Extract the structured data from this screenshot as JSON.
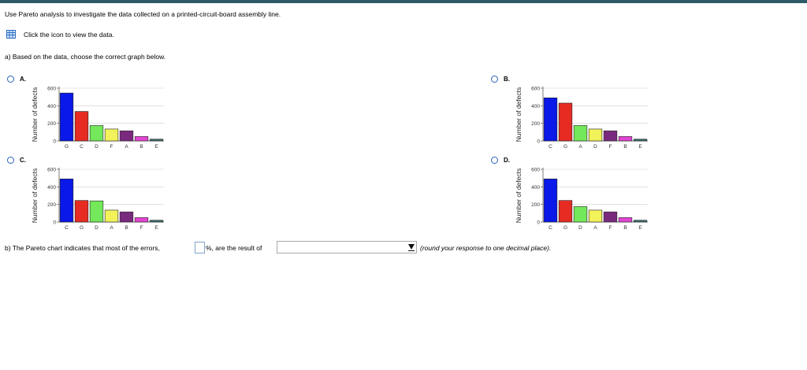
{
  "header_color": "#2e5a68",
  "intro": "Use Pareto analysis to investigate the data collected on a printed-circuit-board assembly line.",
  "data_link": {
    "icon": "table-grid-icon",
    "label": "Click the icon to view the data."
  },
  "question_a": "a) Based on the data, choose the correct graph below.",
  "options": [
    {
      "label": "A.",
      "ylabel": "Number of defects",
      "yticks": [
        "0",
        "200",
        "400",
        "600"
      ],
      "chart_data": {
        "type": "bar",
        "categories": [
          "G",
          "C",
          "D",
          "F",
          "A",
          "B",
          "E"
        ],
        "values": [
          545,
          335,
          175,
          135,
          115,
          50,
          20
        ],
        "colors": [
          "#0a18e8",
          "#e52b22",
          "#73e85a",
          "#f2f25a",
          "#7a2a7e",
          "#e244d2",
          "#3d6f6f"
        ],
        "ylim": [
          0,
          600
        ],
        "xlabel": "",
        "ylabel": "Number of defects"
      }
    },
    {
      "label": "B.",
      "ylabel": "Number of defects",
      "yticks": [
        "0",
        "200",
        "400",
        "600"
      ],
      "chart_data": {
        "type": "bar",
        "categories": [
          "C",
          "G",
          "A",
          "D",
          "F",
          "B",
          "E"
        ],
        "values": [
          490,
          430,
          175,
          135,
          115,
          50,
          20
        ],
        "colors": [
          "#0a18e8",
          "#e52b22",
          "#73e85a",
          "#f2f25a",
          "#7a2a7e",
          "#e244d2",
          "#3d6f6f"
        ],
        "ylim": [
          0,
          600
        ],
        "xlabel": "",
        "ylabel": "Number of defects"
      }
    },
    {
      "label": "C.",
      "ylabel": "Number of defects",
      "yticks": [
        "0",
        "200",
        "400",
        "600"
      ],
      "chart_data": {
        "type": "bar",
        "categories": [
          "C",
          "G",
          "D",
          "A",
          "B",
          "F",
          "E"
        ],
        "values": [
          490,
          245,
          240,
          135,
          115,
          50,
          20
        ],
        "colors": [
          "#0a18e8",
          "#e52b22",
          "#73e85a",
          "#f2f25a",
          "#7a2a7e",
          "#e244d2",
          "#3d6f6f"
        ],
        "ylim": [
          0,
          600
        ],
        "xlabel": "",
        "ylabel": "Number of defects"
      }
    },
    {
      "label": "D.",
      "ylabel": "Number of defects",
      "yticks": [
        "0",
        "200",
        "400",
        "600"
      ],
      "chart_data": {
        "type": "bar",
        "categories": [
          "C",
          "G",
          "D",
          "A",
          "F",
          "B",
          "E"
        ],
        "values": [
          490,
          245,
          175,
          135,
          115,
          50,
          20
        ],
        "colors": [
          "#0a18e8",
          "#e52b22",
          "#73e85a",
          "#f2f25a",
          "#7a2a7e",
          "#e244d2",
          "#3d6f6f"
        ],
        "ylim": [
          0,
          600
        ],
        "xlabel": "",
        "ylabel": "Number of defects"
      }
    }
  ],
  "question_b": {
    "prefix": "b) The Pareto chart indicates that most of the errors,",
    "percent_value": "",
    "middle": "%, are the result of",
    "dropdown_selected": "",
    "hint": "(round your response to one decimal place)."
  }
}
